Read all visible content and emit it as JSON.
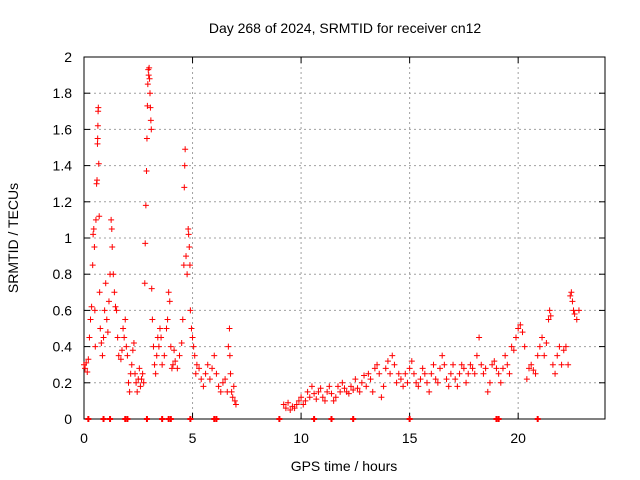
{
  "chart_data": {
    "type": "scatter",
    "title": "Day 268 of 2024, SRMTID for receiver cn12",
    "xlabel": "GPS time / hours",
    "ylabel": "SRMTID / TECUs",
    "xlim": [
      0,
      24
    ],
    "ylim": [
      0,
      2
    ],
    "x_ticks": [
      0,
      5,
      10,
      15,
      20
    ],
    "x_tick_labels": [
      "0",
      "5",
      "10",
      "15",
      "20"
    ],
    "y_ticks": [
      0,
      0.2,
      0.4,
      0.6,
      0.8,
      1,
      1.2,
      1.4,
      1.6,
      1.8,
      2
    ],
    "y_tick_labels": [
      "0",
      "0.2",
      "0.4",
      "0.6",
      "0.8",
      "1",
      "1.2",
      "1.4",
      "1.6",
      "1.8",
      "2"
    ],
    "grid": true,
    "marker": "+",
    "series": [
      {
        "name": "SRMTID",
        "color": "#ff0000",
        "points": [
          [
            0.0,
            0.3
          ],
          [
            0.05,
            0.28
          ],
          [
            0.1,
            0.31
          ],
          [
            0.15,
            0.26
          ],
          [
            0.2,
            0.33
          ],
          [
            0.25,
            0.45
          ],
          [
            0.3,
            0.55
          ],
          [
            0.35,
            0.62
          ],
          [
            0.4,
            0.85
          ],
          [
            0.42,
            1.02
          ],
          [
            0.45,
            1.05
          ],
          [
            0.48,
            0.95
          ],
          [
            0.5,
            0.6
          ],
          [
            0.52,
            0.4
          ],
          [
            0.55,
            1.1
          ],
          [
            0.58,
            1.3
          ],
          [
            0.6,
            1.32
          ],
          [
            0.62,
            1.52
          ],
          [
            0.63,
            1.55
          ],
          [
            0.64,
            1.62
          ],
          [
            0.65,
            1.7
          ],
          [
            0.66,
            1.72
          ],
          [
            0.68,
            1.41
          ],
          [
            0.7,
            1.12
          ],
          [
            0.72,
            0.7
          ],
          [
            0.75,
            0.5
          ],
          [
            0.8,
            0.42
          ],
          [
            0.85,
            0.35
          ],
          [
            0.9,
            0.45
          ],
          [
            0.95,
            0.6
          ],
          [
            1.0,
            0.75
          ],
          [
            1.05,
            0.55
          ],
          [
            1.1,
            0.48
          ],
          [
            1.15,
            0.65
          ],
          [
            1.2,
            0.8
          ],
          [
            1.25,
            1.1
          ],
          [
            1.28,
            1.05
          ],
          [
            1.3,
            0.95
          ],
          [
            1.35,
            0.8
          ],
          [
            1.4,
            0.7
          ],
          [
            1.45,
            0.62
          ],
          [
            1.5,
            0.6
          ],
          [
            1.55,
            0.45
          ],
          [
            1.6,
            0.35
          ],
          [
            1.7,
            0.33
          ],
          [
            1.75,
            0.38
          ],
          [
            1.8,
            0.5
          ],
          [
            1.85,
            0.45
          ],
          [
            1.9,
            0.55
          ],
          [
            1.95,
            0.4
          ],
          [
            2.0,
            0.35
          ],
          [
            2.05,
            0.2
          ],
          [
            2.1,
            0.15
          ],
          [
            2.15,
            0.25
          ],
          [
            2.2,
            0.3
          ],
          [
            2.25,
            0.38
          ],
          [
            2.3,
            0.42
          ],
          [
            2.35,
            0.25
          ],
          [
            2.4,
            0.2
          ],
          [
            2.45,
            0.15
          ],
          [
            2.5,
            0.22
          ],
          [
            2.55,
            0.28
          ],
          [
            2.6,
            0.18
          ],
          [
            2.65,
            0.22
          ],
          [
            2.7,
            0.25
          ],
          [
            2.75,
            0.2
          ],
          [
            2.8,
            0.75
          ],
          [
            2.82,
            0.97
          ],
          [
            2.85,
            1.18
          ],
          [
            2.88,
            1.37
          ],
          [
            2.9,
            1.55
          ],
          [
            2.92,
            1.73
          ],
          [
            2.94,
            1.85
          ],
          [
            2.96,
            1.93
          ],
          [
            2.98,
            1.9
          ],
          [
            3.0,
            1.94
          ],
          [
            3.02,
            1.88
          ],
          [
            3.04,
            1.8
          ],
          [
            3.06,
            1.72
          ],
          [
            3.08,
            1.65
          ],
          [
            3.1,
            1.6
          ],
          [
            3.12,
            0.72
          ],
          [
            3.15,
            0.55
          ],
          [
            3.2,
            0.4
          ],
          [
            3.25,
            0.3
          ],
          [
            3.3,
            0.25
          ],
          [
            3.35,
            0.35
          ],
          [
            3.4,
            0.45
          ],
          [
            3.45,
            0.4
          ],
          [
            3.5,
            0.5
          ],
          [
            3.55,
            0.45
          ],
          [
            3.6,
            0.3
          ],
          [
            3.7,
            0.35
          ],
          [
            3.8,
            0.5
          ],
          [
            3.85,
            0.55
          ],
          [
            3.9,
            0.7
          ],
          [
            3.95,
            0.65
          ],
          [
            4.0,
            0.4
          ],
          [
            4.05,
            0.28
          ],
          [
            4.1,
            0.3
          ],
          [
            4.15,
            0.38
          ],
          [
            4.2,
            0.32
          ],
          [
            4.3,
            0.28
          ],
          [
            4.4,
            0.35
          ],
          [
            4.5,
            0.42
          ],
          [
            4.55,
            0.55
          ],
          [
            4.6,
            0.85
          ],
          [
            4.62,
            1.28
          ],
          [
            4.64,
            1.4
          ],
          [
            4.66,
            1.49
          ],
          [
            4.7,
            0.9
          ],
          [
            4.75,
            0.8
          ],
          [
            4.8,
            1.05
          ],
          [
            4.82,
            1.02
          ],
          [
            4.85,
            0.95
          ],
          [
            4.88,
            0.85
          ],
          [
            4.9,
            0.6
          ],
          [
            4.95,
            0.5
          ],
          [
            5.0,
            0.45
          ],
          [
            5.05,
            0.4
          ],
          [
            5.1,
            0.35
          ],
          [
            5.15,
            0.25
          ],
          [
            5.2,
            0.3
          ],
          [
            5.3,
            0.28
          ],
          [
            5.4,
            0.22
          ],
          [
            5.5,
            0.18
          ],
          [
            5.6,
            0.25
          ],
          [
            5.7,
            0.3
          ],
          [
            5.8,
            0.22
          ],
          [
            5.9,
            0.28
          ],
          [
            6.0,
            0.35
          ],
          [
            6.1,
            0.25
          ],
          [
            6.2,
            0.18
          ],
          [
            6.3,
            0.15
          ],
          [
            6.4,
            0.2
          ],
          [
            6.5,
            0.22
          ],
          [
            6.6,
            0.15
          ],
          [
            6.65,
            0.4
          ],
          [
            6.7,
            0.5
          ],
          [
            6.72,
            0.35
          ],
          [
            6.75,
            0.25
          ],
          [
            6.8,
            0.15
          ],
          [
            6.85,
            0.12
          ],
          [
            6.9,
            0.18
          ],
          [
            6.95,
            0.1
          ],
          [
            7.0,
            0.08
          ],
          [
            9.2,
            0.08
          ],
          [
            9.3,
            0.06
          ],
          [
            9.4,
            0.09
          ],
          [
            9.5,
            0.05
          ],
          [
            9.6,
            0.07
          ],
          [
            9.7,
            0.06
          ],
          [
            9.8,
            0.08
          ],
          [
            9.9,
            0.1
          ],
          [
            10.0,
            0.12
          ],
          [
            10.1,
            0.08
          ],
          [
            10.2,
            0.1
          ],
          [
            10.3,
            0.15
          ],
          [
            10.4,
            0.12
          ],
          [
            10.5,
            0.18
          ],
          [
            10.6,
            0.14
          ],
          [
            10.7,
            0.11
          ],
          [
            10.8,
            0.15
          ],
          [
            10.9,
            0.17
          ],
          [
            11.0,
            0.12
          ],
          [
            11.1,
            0.1
          ],
          [
            11.2,
            0.15
          ],
          [
            11.3,
            0.18
          ],
          [
            11.4,
            0.14
          ],
          [
            11.5,
            0.1
          ],
          [
            11.6,
            0.12
          ],
          [
            11.7,
            0.18
          ],
          [
            11.8,
            0.15
          ],
          [
            11.9,
            0.2
          ],
          [
            12.0,
            0.17
          ],
          [
            12.1,
            0.15
          ],
          [
            12.2,
            0.14
          ],
          [
            12.3,
            0.18
          ],
          [
            12.4,
            0.16
          ],
          [
            12.5,
            0.22
          ],
          [
            12.6,
            0.17
          ],
          [
            12.7,
            0.15
          ],
          [
            12.8,
            0.2
          ],
          [
            12.9,
            0.24
          ],
          [
            13.0,
            0.18
          ],
          [
            13.1,
            0.25
          ],
          [
            13.2,
            0.22
          ],
          [
            13.3,
            0.15
          ],
          [
            13.4,
            0.28
          ],
          [
            13.5,
            0.3
          ],
          [
            13.6,
            0.25
          ],
          [
            13.7,
            0.12
          ],
          [
            13.8,
            0.18
          ],
          [
            13.9,
            0.28
          ],
          [
            14.0,
            0.32
          ],
          [
            14.1,
            0.25
          ],
          [
            14.2,
            0.35
          ],
          [
            14.3,
            0.3
          ],
          [
            14.4,
            0.2
          ],
          [
            14.5,
            0.25
          ],
          [
            14.6,
            0.22
          ],
          [
            14.7,
            0.18
          ],
          [
            14.8,
            0.25
          ],
          [
            14.9,
            0.2
          ],
          [
            15.0,
            0.28
          ],
          [
            15.1,
            0.32
          ],
          [
            15.2,
            0.25
          ],
          [
            15.3,
            0.2
          ],
          [
            15.4,
            0.18
          ],
          [
            15.5,
            0.22
          ],
          [
            15.6,
            0.28
          ],
          [
            15.7,
            0.25
          ],
          [
            15.8,
            0.2
          ],
          [
            15.9,
            0.15
          ],
          [
            16.0,
            0.25
          ],
          [
            16.1,
            0.3
          ],
          [
            16.2,
            0.22
          ],
          [
            16.3,
            0.2
          ],
          [
            16.4,
            0.28
          ],
          [
            16.5,
            0.35
          ],
          [
            16.6,
            0.3
          ],
          [
            16.7,
            0.22
          ],
          [
            16.8,
            0.18
          ],
          [
            16.9,
            0.25
          ],
          [
            17.0,
            0.3
          ],
          [
            17.1,
            0.22
          ],
          [
            17.2,
            0.18
          ],
          [
            17.3,
            0.25
          ],
          [
            17.4,
            0.3
          ],
          [
            17.5,
            0.28
          ],
          [
            17.6,
            0.2
          ],
          [
            17.7,
            0.25
          ],
          [
            17.8,
            0.3
          ],
          [
            17.9,
            0.28
          ],
          [
            18.0,
            0.25
          ],
          [
            18.1,
            0.35
          ],
          [
            18.2,
            0.45
          ],
          [
            18.3,
            0.3
          ],
          [
            18.4,
            0.25
          ],
          [
            18.5,
            0.28
          ],
          [
            18.6,
            0.15
          ],
          [
            18.7,
            0.2
          ],
          [
            18.8,
            0.3
          ],
          [
            18.9,
            0.32
          ],
          [
            19.0,
            0.28
          ],
          [
            19.1,
            0.25
          ],
          [
            19.2,
            0.2
          ],
          [
            19.3,
            0.28
          ],
          [
            19.4,
            0.35
          ],
          [
            19.5,
            0.3
          ],
          [
            19.6,
            0.25
          ],
          [
            19.7,
            0.4
          ],
          [
            19.8,
            0.38
          ],
          [
            19.9,
            0.45
          ],
          [
            20.0,
            0.5
          ],
          [
            20.1,
            0.52
          ],
          [
            20.2,
            0.48
          ],
          [
            20.3,
            0.4
          ],
          [
            20.4,
            0.22
          ],
          [
            20.5,
            0.28
          ],
          [
            20.6,
            0.3
          ],
          [
            20.7,
            0.27
          ],
          [
            20.8,
            0.25
          ],
          [
            20.9,
            0.35
          ],
          [
            21.0,
            0.4
          ],
          [
            21.1,
            0.45
          ],
          [
            21.2,
            0.35
          ],
          [
            21.3,
            0.42
          ],
          [
            21.4,
            0.55
          ],
          [
            21.45,
            0.6
          ],
          [
            21.5,
            0.57
          ],
          [
            21.6,
            0.3
          ],
          [
            21.7,
            0.25
          ],
          [
            21.8,
            0.35
          ],
          [
            21.9,
            0.4
          ],
          [
            22.0,
            0.3
          ],
          [
            22.1,
            0.38
          ],
          [
            22.2,
            0.4
          ],
          [
            22.3,
            0.3
          ],
          [
            22.4,
            0.68
          ],
          [
            22.45,
            0.7
          ],
          [
            22.5,
            0.65
          ],
          [
            22.55,
            0.6
          ],
          [
            22.6,
            0.58
          ],
          [
            22.7,
            0.55
          ],
          [
            22.8,
            0.6
          ]
        ]
      }
    ],
    "zero_points": [
      0.2,
      0.9,
      1.2,
      1.9,
      2.0,
      2.9,
      3.6,
      3.9,
      4.0,
      4.9,
      6.0,
      6.1,
      9.0,
      10.6,
      11.4,
      12.4,
      15.0,
      19.0,
      19.1,
      20.9
    ]
  }
}
